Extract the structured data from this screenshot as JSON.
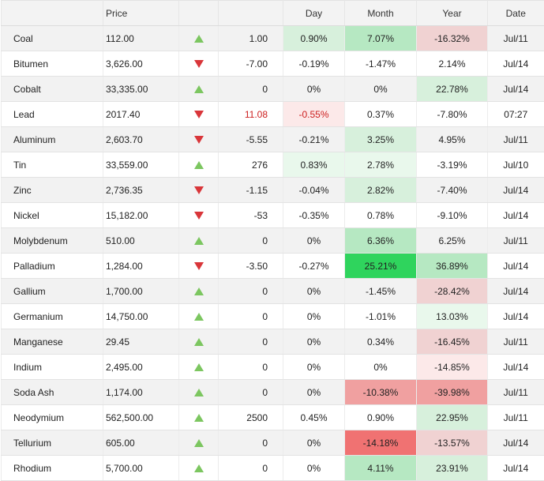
{
  "headers": {
    "name": "",
    "price": "Price",
    "arrow": "",
    "change": "",
    "day": "Day",
    "month": "Month",
    "year": "Year",
    "date": "Date"
  },
  "colors": {
    "up_arrow": "#7cc660",
    "down_arrow": "#d9363a",
    "green_light": "#e9f8ec",
    "green_mid": "#d7f0dc",
    "green_strong": "#b6e8c2",
    "green_vivid": "#2fd45d",
    "red_light": "#fce9e9",
    "red_mid": "#f0d2d2",
    "red_strong": "#f0a0a0",
    "red_vivid": "#f07272"
  },
  "rows": [
    {
      "name": "Coal",
      "price": "112.00",
      "dir": "up",
      "change": "1.00",
      "day": "0.90%",
      "month": "7.07%",
      "year": "-16.32%",
      "date": "Jul/11",
      "day_bg": "green_mid",
      "month_bg": "green_strong",
      "year_bg": "red_mid"
    },
    {
      "name": "Bitumen",
      "price": "3,626.00",
      "dir": "down",
      "change": "-7.00",
      "day": "-0.19%",
      "month": "-1.47%",
      "year": "2.14%",
      "date": "Jul/14"
    },
    {
      "name": "Cobalt",
      "price": "33,335.00",
      "dir": "up",
      "change": "0",
      "day": "0%",
      "month": "0%",
      "year": "22.78%",
      "date": "Jul/14",
      "year_bg": "green_mid"
    },
    {
      "name": "Lead",
      "price": "2017.40",
      "dir": "down",
      "change": "11.08",
      "day": "-0.55%",
      "month": "0.37%",
      "year": "-7.80%",
      "date": "07:27",
      "change_red": true,
      "day_red": true,
      "day_bg": "red_light"
    },
    {
      "name": "Aluminum",
      "price": "2,603.70",
      "dir": "down",
      "change": "-5.55",
      "day": "-0.21%",
      "month": "3.25%",
      "year": "4.95%",
      "date": "Jul/11",
      "month_bg": "green_mid"
    },
    {
      "name": "Tin",
      "price": "33,559.00",
      "dir": "up",
      "change": "276",
      "day": "0.83%",
      "month": "2.78%",
      "year": "-3.19%",
      "date": "Jul/10",
      "day_bg": "green_light",
      "month_bg": "green_light"
    },
    {
      "name": "Zinc",
      "price": "2,736.35",
      "dir": "down",
      "change": "-1.15",
      "day": "-0.04%",
      "month": "2.82%",
      "year": "-7.40%",
      "date": "Jul/14",
      "month_bg": "green_mid"
    },
    {
      "name": "Nickel",
      "price": "15,182.00",
      "dir": "down",
      "change": "-53",
      "day": "-0.35%",
      "month": "0.78%",
      "year": "-9.10%",
      "date": "Jul/14"
    },
    {
      "name": "Molybdenum",
      "price": "510.00",
      "dir": "up",
      "change": "0",
      "day": "0%",
      "month": "6.36%",
      "year": "6.25%",
      "date": "Jul/11",
      "month_bg": "green_strong"
    },
    {
      "name": "Palladium",
      "price": "1,284.00",
      "dir": "down",
      "change": "-3.50",
      "day": "-0.27%",
      "month": "25.21%",
      "year": "36.89%",
      "date": "Jul/14",
      "month_bg": "green_vivid",
      "year_bg": "green_strong"
    },
    {
      "name": "Gallium",
      "price": "1,700.00",
      "dir": "up",
      "change": "0",
      "day": "0%",
      "month": "-1.45%",
      "year": "-28.42%",
      "date": "Jul/14",
      "year_bg": "red_mid"
    },
    {
      "name": "Germanium",
      "price": "14,750.00",
      "dir": "up",
      "change": "0",
      "day": "0%",
      "month": "-1.01%",
      "year": "13.03%",
      "date": "Jul/14",
      "year_bg": "green_light"
    },
    {
      "name": "Manganese",
      "price": "29.45",
      "dir": "up",
      "change": "0",
      "day": "0%",
      "month": "0.34%",
      "year": "-16.45%",
      "date": "Jul/11",
      "year_bg": "red_mid"
    },
    {
      "name": "Indium",
      "price": "2,495.00",
      "dir": "up",
      "change": "0",
      "day": "0%",
      "month": "0%",
      "year": "-14.85%",
      "date": "Jul/14",
      "year_bg": "red_light"
    },
    {
      "name": "Soda Ash",
      "price": "1,174.00",
      "dir": "up",
      "change": "0",
      "day": "0%",
      "month": "-10.38%",
      "year": "-39.98%",
      "date": "Jul/11",
      "month_bg": "red_strong",
      "year_bg": "red_strong"
    },
    {
      "name": "Neodymium",
      "price": "562,500.00",
      "dir": "up",
      "change": "2500",
      "day": "0.45%",
      "month": "0.90%",
      "year": "22.95%",
      "date": "Jul/11",
      "year_bg": "green_mid"
    },
    {
      "name": "Tellurium",
      "price": "605.00",
      "dir": "up",
      "change": "0",
      "day": "0%",
      "month": "-14.18%",
      "year": "-13.57%",
      "date": "Jul/14",
      "month_bg": "red_vivid",
      "year_bg": "red_mid"
    },
    {
      "name": "Rhodium",
      "price": "5,700.00",
      "dir": "up",
      "change": "0",
      "day": "0%",
      "month": "4.11%",
      "year": "23.91%",
      "date": "Jul/14",
      "month_bg": "green_strong",
      "year_bg": "green_mid"
    }
  ]
}
